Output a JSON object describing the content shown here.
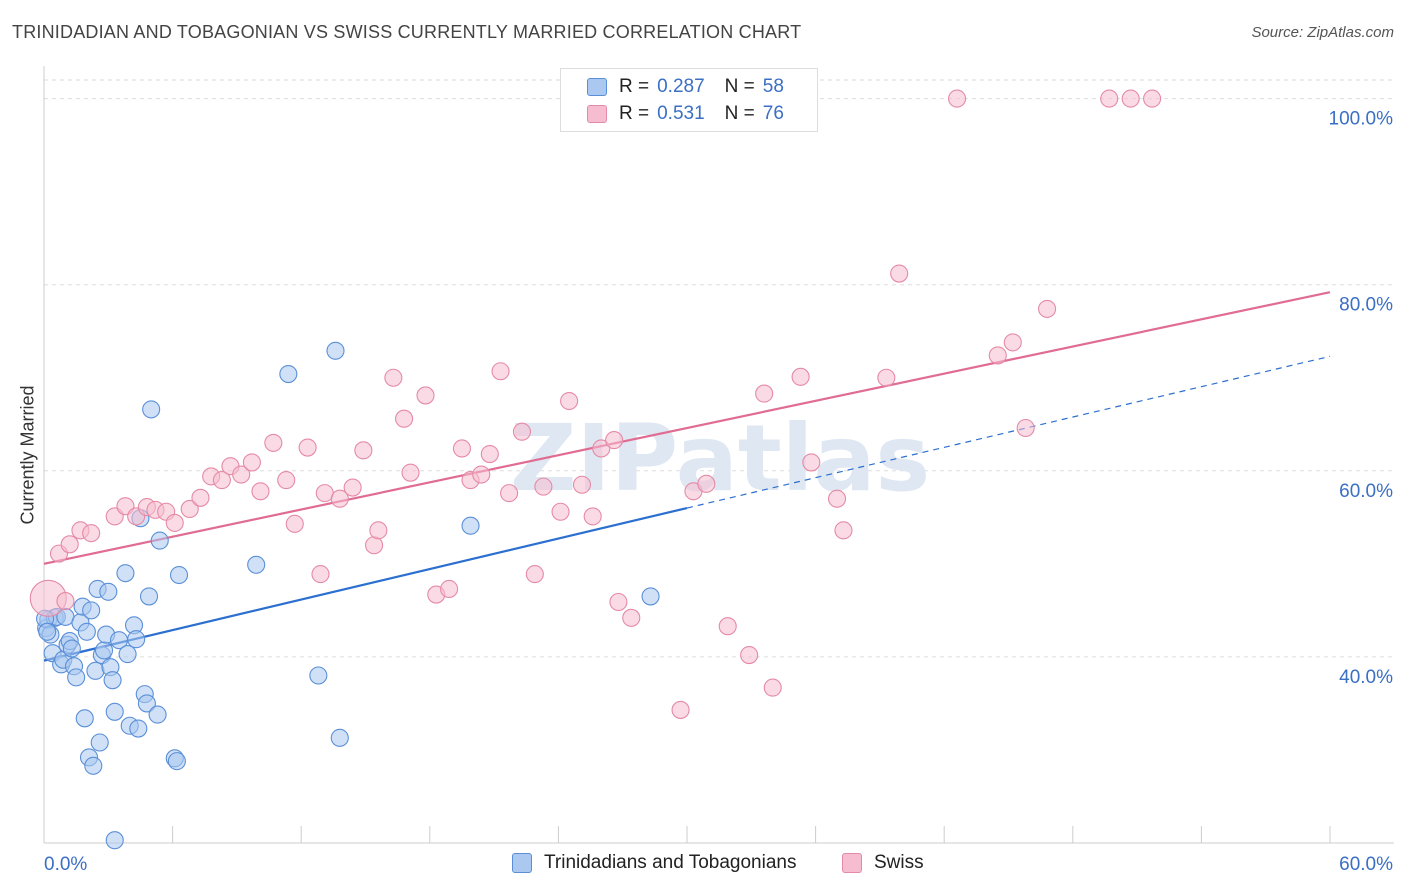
{
  "header": {
    "title": "TRINIDADIAN AND TOBAGONIAN VS SWISS CURRENTLY MARRIED CORRELATION CHART",
    "source": "Source: ZipAtlas.com"
  },
  "watermark": "ZIPatlas",
  "legend": {
    "r_label": "R =",
    "n_label": "N =",
    "rows": [
      {
        "r": "0.287",
        "n": "58"
      },
      {
        "r": "0.531",
        "n": "76"
      }
    ]
  },
  "chart_data": {
    "type": "scatter",
    "title": "TRINIDADIAN AND TOBAGONIAN VS SWISS CURRENTLY MARRIED CORRELATION CHART",
    "xlabel": "",
    "ylabel": "Currently Married",
    "xlim": [
      0,
      60
    ],
    "ylim": [
      20,
      102
    ],
    "x_tick_labels": [
      "0.0%",
      "60.0%"
    ],
    "y_ticks": [
      40,
      60,
      80,
      100
    ],
    "y_tick_labels": [
      "40.0%",
      "60.0%",
      "80.0%",
      "100.0%"
    ],
    "grid": true,
    "legend_position": "top-center",
    "series": [
      {
        "name": "Trinidadians and Tobagonians",
        "color": "#5a8fd8",
        "fill": "#aac8f0",
        "r": 0.287,
        "n": 58,
        "trend": {
          "x0": 0,
          "y0": 39.6,
          "x1": 30,
          "y1": 56.0,
          "dash_x1": 60,
          "dash_y1": 72.3
        },
        "points": [
          [
            0.1,
            43.1
          ],
          [
            0.2,
            44.0
          ],
          [
            0.3,
            42.4
          ],
          [
            0.4,
            40.4
          ],
          [
            0.5,
            44.2
          ],
          [
            0.6,
            44.3
          ],
          [
            0.8,
            39.2
          ],
          [
            0.9,
            39.7
          ],
          [
            1.0,
            44.3
          ],
          [
            1.1,
            41.3
          ],
          [
            1.2,
            41.7
          ],
          [
            1.3,
            40.9
          ],
          [
            1.4,
            39.0
          ],
          [
            1.5,
            37.8
          ],
          [
            1.7,
            43.7
          ],
          [
            1.8,
            45.4
          ],
          [
            1.9,
            33.4
          ],
          [
            2.0,
            42.7
          ],
          [
            2.1,
            29.2
          ],
          [
            2.2,
            45.0
          ],
          [
            2.3,
            28.3
          ],
          [
            2.4,
            38.5
          ],
          [
            2.5,
            47.3
          ],
          [
            2.6,
            30.8
          ],
          [
            2.7,
            40.2
          ],
          [
            2.8,
            40.7
          ],
          [
            2.9,
            42.4
          ],
          [
            3.0,
            47.0
          ],
          [
            3.1,
            38.9
          ],
          [
            3.2,
            37.5
          ],
          [
            3.3,
            34.1
          ],
          [
            3.5,
            41.8
          ],
          [
            3.8,
            49.0
          ],
          [
            3.9,
            40.3
          ],
          [
            4.0,
            32.6
          ],
          [
            4.2,
            43.4
          ],
          [
            4.3,
            41.9
          ],
          [
            4.4,
            32.3
          ],
          [
            4.5,
            54.9
          ],
          [
            4.7,
            36.0
          ],
          [
            4.8,
            35.0
          ],
          [
            4.9,
            46.5
          ],
          [
            5.0,
            66.6
          ],
          [
            5.3,
            33.8
          ],
          [
            5.4,
            52.5
          ],
          [
            6.1,
            29.1
          ],
          [
            6.2,
            28.8
          ],
          [
            6.3,
            48.8
          ],
          [
            9.9,
            49.9
          ],
          [
            11.4,
            70.4
          ],
          [
            12.8,
            38.0
          ],
          [
            13.6,
            72.9
          ],
          [
            13.8,
            31.3
          ],
          [
            19.9,
            54.1
          ],
          [
            28.3,
            46.5
          ],
          [
            3.3,
            20.3
          ],
          [
            0.05,
            44.1
          ],
          [
            0.15,
            42.7
          ]
        ]
      },
      {
        "name": "Swiss",
        "color": "#e58aa6",
        "fill": "#f6bdd0",
        "r": 0.531,
        "n": 76,
        "trend": {
          "x0": 0,
          "y0": 50.0,
          "x1": 60,
          "y1": 79.2
        },
        "points": [
          [
            0.2,
            46.3
          ],
          [
            0.7,
            51.1
          ],
          [
            1.2,
            52.1
          ],
          [
            1.7,
            53.6
          ],
          [
            2.2,
            53.3
          ],
          [
            3.3,
            55.1
          ],
          [
            3.8,
            56.2
          ],
          [
            4.3,
            55.1
          ],
          [
            4.8,
            56.1
          ],
          [
            5.2,
            55.8
          ],
          [
            5.7,
            55.6
          ],
          [
            6.1,
            54.4
          ],
          [
            6.8,
            55.9
          ],
          [
            7.3,
            57.1
          ],
          [
            7.8,
            59.4
          ],
          [
            8.3,
            59.0
          ],
          [
            8.7,
            60.5
          ],
          [
            9.2,
            59.6
          ],
          [
            9.7,
            60.9
          ],
          [
            10.1,
            57.8
          ],
          [
            10.7,
            63.0
          ],
          [
            11.3,
            59.0
          ],
          [
            11.7,
            54.3
          ],
          [
            12.3,
            62.5
          ],
          [
            12.9,
            48.9
          ],
          [
            13.1,
            57.6
          ],
          [
            13.8,
            57.0
          ],
          [
            14.4,
            58.2
          ],
          [
            14.9,
            62.2
          ],
          [
            15.4,
            52.0
          ],
          [
            15.6,
            53.6
          ],
          [
            16.3,
            70.0
          ],
          [
            16.8,
            65.6
          ],
          [
            17.1,
            59.8
          ],
          [
            17.8,
            68.1
          ],
          [
            18.3,
            46.7
          ],
          [
            18.9,
            47.3
          ],
          [
            19.5,
            62.4
          ],
          [
            19.9,
            59.0
          ],
          [
            20.4,
            59.6
          ],
          [
            20.8,
            61.8
          ],
          [
            21.3,
            70.7
          ],
          [
            21.7,
            57.6
          ],
          [
            22.3,
            64.2
          ],
          [
            22.9,
            48.9
          ],
          [
            23.3,
            58.3
          ],
          [
            24.1,
            55.6
          ],
          [
            24.5,
            67.5
          ],
          [
            25.1,
            58.5
          ],
          [
            25.6,
            55.1
          ],
          [
            26.0,
            62.4
          ],
          [
            26.6,
            63.3
          ],
          [
            26.8,
            45.9
          ],
          [
            27.4,
            44.2
          ],
          [
            29.7,
            34.3
          ],
          [
            30.3,
            57.8
          ],
          [
            30.9,
            58.6
          ],
          [
            31.9,
            43.3
          ],
          [
            32.9,
            40.2
          ],
          [
            33.6,
            68.3
          ],
          [
            34.0,
            36.7
          ],
          [
            35.3,
            70.1
          ],
          [
            35.8,
            60.9
          ],
          [
            37.0,
            57.0
          ],
          [
            37.3,
            53.6
          ],
          [
            39.3,
            70.0
          ],
          [
            39.9,
            81.2
          ],
          [
            42.6,
            100.0
          ],
          [
            44.5,
            72.4
          ],
          [
            45.2,
            73.8
          ],
          [
            45.8,
            64.6
          ],
          [
            46.8,
            77.4
          ],
          [
            49.7,
            100.0
          ],
          [
            50.7,
            100.0
          ],
          [
            51.7,
            100.0
          ],
          [
            1.0,
            46.0
          ]
        ]
      }
    ]
  },
  "bottom_legend": {
    "items": [
      {
        "label": "Trinidadians and Tobagonians"
      },
      {
        "label": "Swiss"
      }
    ]
  },
  "colors": {
    "blue_stroke": "#5a8fd8",
    "blue_fill": "#aac8f0",
    "blue_line": "#2b6fd0",
    "pink_stroke": "#e58aa6",
    "pink_fill": "#f6bdd0",
    "pink_line": "#e06c92",
    "tick_label": "#3a6fc4",
    "grid": "#dddddd"
  }
}
